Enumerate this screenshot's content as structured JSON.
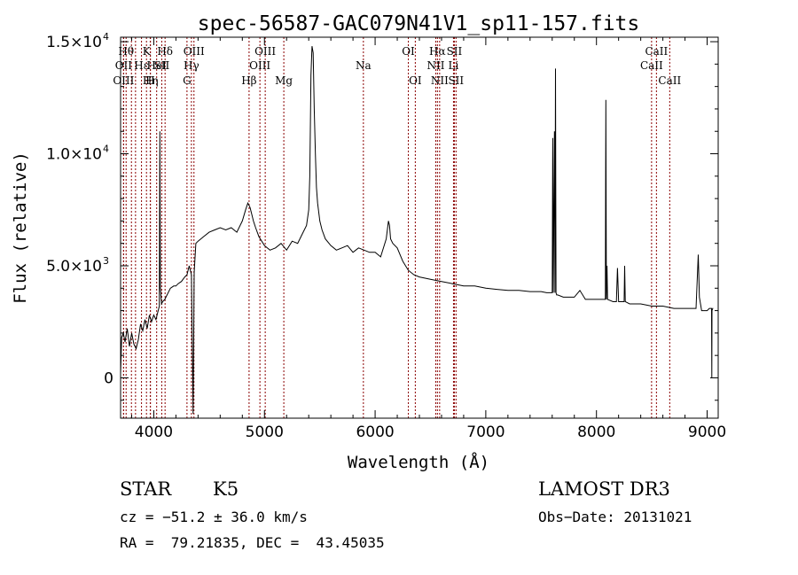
{
  "chart_data": {
    "type": "line",
    "title": "spec-56587-GAC079N41V1_sp11-157.fits",
    "xlabel": "Wavelength (Å)",
    "ylabel": "Flux (relative)",
    "xlim": [
      3700,
      9100
    ],
    "ylim": [
      -1800,
      15200
    ],
    "xticks": [
      {
        "value": 4000,
        "label": "4000"
      },
      {
        "value": 5000,
        "label": "5000"
      },
      {
        "value": 6000,
        "label": "6000"
      },
      {
        "value": 7000,
        "label": "7000"
      },
      {
        "value": 8000,
        "label": "8000"
      },
      {
        "value": 9000,
        "label": "9000"
      }
    ],
    "yticks": [
      {
        "value": 0,
        "mantissa": "0",
        "exponent": ""
      },
      {
        "value": 5000,
        "mantissa": "5.0×10",
        "exponent": "3"
      },
      {
        "value": 10000,
        "mantissa": "1.0×10",
        "exponent": "4"
      },
      {
        "value": 15000,
        "mantissa": "1.5×10",
        "exponent": "4"
      }
    ],
    "grid": false,
    "line_color": "#000000",
    "line_marker_color": "#8b0000",
    "spectrum": {
      "x": [
        3700,
        3710,
        3725,
        3740,
        3760,
        3780,
        3800,
        3820,
        3840,
        3860,
        3880,
        3900,
        3920,
        3940,
        3960,
        3980,
        4000,
        4020,
        4040,
        4050,
        4055,
        4060,
        4070,
        4080,
        4100,
        4120,
        4150,
        4180,
        4200,
        4220,
        4250,
        4280,
        4300,
        4320,
        4340,
        4355,
        4365,
        4380,
        4400,
        4450,
        4500,
        4550,
        4600,
        4650,
        4700,
        4750,
        4800,
        4830,
        4850,
        4870,
        4880,
        4900,
        4920,
        4950,
        5000,
        5050,
        5100,
        5150,
        5200,
        5250,
        5300,
        5350,
        5380,
        5400,
        5410,
        5420,
        5430,
        5440,
        5450,
        5460,
        5470,
        5480,
        5500,
        5520,
        5550,
        5600,
        5650,
        5700,
        5750,
        5800,
        5850,
        5900,
        5950,
        6000,
        6050,
        6100,
        6120,
        6130,
        6140,
        6160,
        6200,
        6250,
        6300,
        6350,
        6400,
        6500,
        6600,
        6700,
        6800,
        6900,
        7000,
        7100,
        7200,
        7300,
        7400,
        7500,
        7550,
        7600,
        7605,
        7610,
        7620,
        7625,
        7630,
        7635,
        7640,
        7650,
        7700,
        7800,
        7850,
        7900,
        8000,
        8050,
        8080,
        8085,
        8090,
        8095,
        8100,
        8150,
        8180,
        8190,
        8200,
        8250,
        8255,
        8260,
        8300,
        8400,
        8500,
        8600,
        8700,
        8800,
        8900,
        8920,
        8930,
        8950,
        9000,
        9020,
        9040,
        9042,
        9044,
        9050,
        9055
      ],
      "y": [
        200,
        1800,
        2000,
        1600,
        2200,
        1400,
        2000,
        1500,
        1300,
        1700,
        2400,
        2100,
        2600,
        2200,
        2800,
        2500,
        2800,
        2600,
        3000,
        3200,
        11000,
        4000,
        3300,
        3400,
        3500,
        3700,
        4000,
        4100,
        4100,
        4200,
        4300,
        4500,
        4600,
        5000,
        4600,
        -1600,
        4700,
        6000,
        6100,
        6300,
        6500,
        6600,
        6700,
        6600,
        6700,
        6500,
        7000,
        7500,
        7800,
        7600,
        7400,
        7000,
        6700,
        6300,
        5900,
        5700,
        5800,
        6000,
        5700,
        6100,
        6000,
        6500,
        6800,
        7500,
        9000,
        13500,
        14800,
        14500,
        12000,
        10000,
        8500,
        7800,
        7000,
        6600,
        6200,
        5900,
        5700,
        5800,
        5900,
        5600,
        5800,
        5700,
        5600,
        5600,
        5400,
        6200,
        7000,
        6800,
        6200,
        6000,
        5800,
        5200,
        4800,
        4600,
        4500,
        4400,
        4300,
        4200,
        4100,
        4100,
        4000,
        3950,
        3900,
        3900,
        3850,
        3850,
        3800,
        3800,
        10700,
        3800,
        11000,
        3800,
        13800,
        3800,
        3700,
        3700,
        3600,
        3600,
        3900,
        3500,
        3500,
        3500,
        3500,
        12400,
        3500,
        5000,
        3500,
        3400,
        3400,
        4900,
        3400,
        3400,
        5000,
        3400,
        3300,
        3300,
        3200,
        3200,
        3100,
        3100,
        3100,
        5500,
        3600,
        3000,
        3000,
        3100,
        3100,
        0,
        3000,
        3100,
        3100
      ]
    },
    "lines": [
      {
        "x": 3750,
        "label": "Hθ",
        "row": 1
      },
      {
        "x": 3727,
        "label": "OII",
        "row": 2
      },
      {
        "x": 3727,
        "label": "OIII",
        "row": 3
      },
      {
        "x": 3798,
        "label": "",
        "row": 0
      },
      {
        "x": 3835,
        "label": "",
        "row": 0
      },
      {
        "x": 3889,
        "label": "Hε",
        "row": 2
      },
      {
        "x": 3934,
        "label": "K",
        "row": 1
      },
      {
        "x": 3968,
        "label": "H",
        "row": 3
      },
      {
        "x": 3970,
        "label": "Hη",
        "row": 3
      },
      {
        "x": 4026,
        "label": "HeI",
        "row": 2
      },
      {
        "x": 4072,
        "label": "SII",
        "row": 2
      },
      {
        "x": 4102,
        "label": "Hδ",
        "row": 1
      },
      {
        "x": 4300,
        "label": "G",
        "row": 3
      },
      {
        "x": 4340,
        "label": "Hγ",
        "row": 2
      },
      {
        "x": 4363,
        "label": "OIII",
        "row": 1
      },
      {
        "x": 4861,
        "label": "Hβ",
        "row": 3
      },
      {
        "x": 4959,
        "label": "OIII",
        "row": 2
      },
      {
        "x": 5007,
        "label": "OIII",
        "row": 1
      },
      {
        "x": 5175,
        "label": "Mg",
        "row": 3
      },
      {
        "x": 5894,
        "label": "Na",
        "row": 2
      },
      {
        "x": 6300,
        "label": "OI",
        "row": 1
      },
      {
        "x": 6363,
        "label": "OI",
        "row": 3
      },
      {
        "x": 6548,
        "label": "NII",
        "row": 2
      },
      {
        "x": 6563,
        "label": "Hα",
        "row": 1
      },
      {
        "x": 6583,
        "label": "NII",
        "row": 3
      },
      {
        "x": 6708,
        "label": "Li",
        "row": 2
      },
      {
        "x": 6716,
        "label": "SII",
        "row": 1
      },
      {
        "x": 6731,
        "label": "SII",
        "row": 3
      },
      {
        "x": 8498,
        "label": "CaII",
        "row": 2
      },
      {
        "x": 8542,
        "label": "CaII",
        "row": 1
      },
      {
        "x": 8662,
        "label": "CaII",
        "row": 3
      }
    ]
  },
  "info": {
    "class": "STAR",
    "subclass": "K5",
    "survey": "LAMOST DR3",
    "cz": "cz = −51.2 ± 36.0 km/s",
    "obs_date": "Obs−Date: 20131021",
    "coords": "RA =  79.21835, DEC =  43.45035"
  }
}
